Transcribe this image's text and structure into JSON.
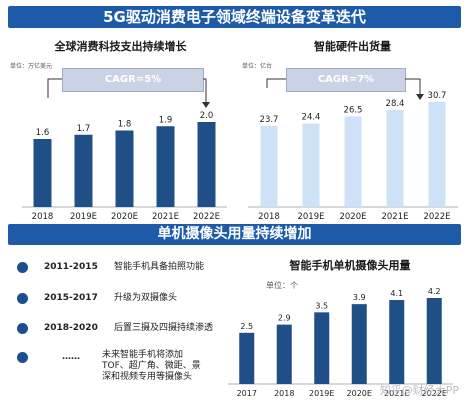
{
  "header": {
    "title": "5G驱动消费电子领域终端设备变革迭代"
  },
  "section2": {
    "title": "单机摄像头用量持续增加"
  },
  "timeline": [
    {
      "period": "2011-2015",
      "text": [
        "智能手机具备拍照功能"
      ]
    },
    {
      "period": "2015-2017",
      "text": [
        "升级为双摄像头"
      ]
    },
    {
      "period": "2018-2020",
      "text": [
        "后置三摄及四摄持续渗透"
      ]
    },
    {
      "period": "……",
      "text": [
        "未来智能手机将添加",
        "TOF、超广角、微距、景",
        "深和视频专用等摄像头"
      ]
    }
  ],
  "watermark": "知乎@财经大PP",
  "colors": {
    "banner": "#1d5ba8",
    "bar_dark": "#1f4f86",
    "bar_light": "#cde2f7",
    "dot": "#1d4e8f"
  },
  "chart_data": [
    {
      "type": "bar",
      "title": "全球消费科技支出持续增长",
      "unit": "单位：万亿美元",
      "categories": [
        "2018",
        "2019E",
        "2020E",
        "2021E",
        "2022E"
      ],
      "values": [
        1.6,
        1.7,
        1.8,
        1.9,
        2.0
      ],
      "value_labels": [
        "1.6",
        "1.7",
        "1.8",
        "1.9",
        "2.0"
      ],
      "annotation": "CAGR=5%",
      "color": "#1f4f86"
    },
    {
      "type": "bar",
      "title": "智能硬件出货量",
      "unit": "单位：亿台",
      "categories": [
        "2018",
        "2019E",
        "2020E",
        "2021E",
        "2022E"
      ],
      "values": [
        23.7,
        24.4,
        26.5,
        28.4,
        30.7
      ],
      "value_labels": [
        "23.7",
        "24.4",
        "26.5",
        "28.4",
        "30.7"
      ],
      "annotation": "CAGR=7%",
      "color": "#cde2f7"
    },
    {
      "type": "bar",
      "title": "智能手机单机摄像头用量",
      "unit": "单位：个",
      "categories": [
        "2017",
        "2018",
        "2019E",
        "2020E",
        "2021E",
        "2022E"
      ],
      "values": [
        2.5,
        2.9,
        3.5,
        3.9,
        4.1,
        4.2
      ],
      "value_labels": [
        "2.5",
        "2.9",
        "3.5",
        "3.9",
        "4.1",
        "4.2"
      ],
      "color": "#1f4f86"
    }
  ]
}
